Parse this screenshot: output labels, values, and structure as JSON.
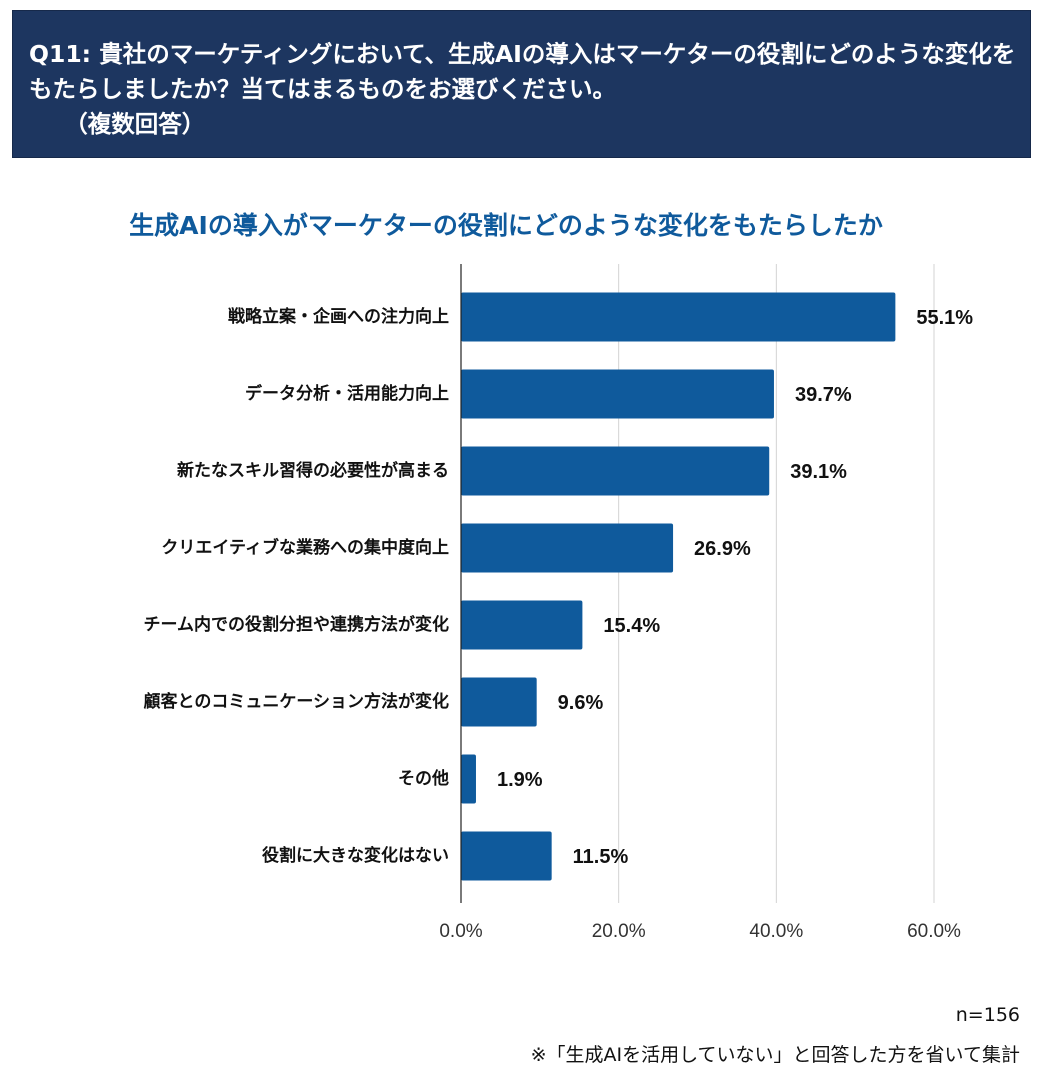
{
  "header": {
    "question": "Q11: 貴社のマーケティングにおいて、生成AIの導入はマーケターの役割にどのような変化をもたらしましたか？当てはまるものをお選びください。\n　　（複数回答）"
  },
  "colors": {
    "header_bg": "#1d3660",
    "bar": "#0f5a9c",
    "title": "#0f5a9c"
  },
  "chart_data": {
    "type": "bar",
    "orientation": "horizontal",
    "title": "生成AIの導入がマーケターの役割にどのような変化をもたらしたか",
    "categories": [
      "戦略立案・企画への注力向上",
      "データ分析・活用能力向上",
      "新たなスキル習得の必要性が高まる",
      "クリエイティブな業務への集中度向上",
      "チーム内での役割分担や連携方法が変化",
      "顧客とのコミュニケーション方法が変化",
      "その他",
      "役割に大きな変化はない"
    ],
    "values": [
      55.1,
      39.7,
      39.1,
      26.9,
      15.4,
      9.6,
      1.9,
      11.5
    ],
    "value_labels": [
      "55.1%",
      "39.7%",
      "39.1%",
      "26.9%",
      "15.4%",
      "9.6%",
      "1.9%",
      "11.5%"
    ],
    "xlim": [
      0,
      60
    ],
    "xticks": [
      0,
      20,
      40,
      60
    ],
    "xtick_labels": [
      "0.0%",
      "20.0%",
      "40.0%",
      "60.0%"
    ],
    "grid": true,
    "legend": "none"
  },
  "notes": {
    "sample": "n=156",
    "footnote": "※「生成AIを活用していない」と回答した方を省いて集計"
  }
}
